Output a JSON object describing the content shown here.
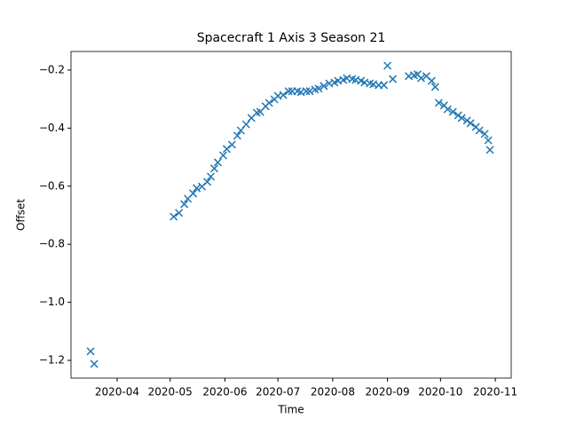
{
  "chart_data": {
    "type": "scatter",
    "title": "Spacecraft 1 Axis 3 Season 21",
    "x_label": "Time",
    "y_label": "Offset",
    "series": [
      {
        "color": "#1f77b4",
        "marker": "x",
        "x": [
          18338,
          18340,
          18385,
          18388,
          18391,
          18393,
          18396,
          18398,
          18401,
          18404,
          18406,
          18408,
          18410,
          18413,
          18415,
          18418,
          18421,
          18423,
          18426,
          18429,
          18432,
          18434,
          18437,
          18439,
          18442,
          18444,
          18447,
          18450,
          18452,
          18455,
          18457,
          18460,
          18462,
          18465,
          18467,
          18470,
          18473,
          18476,
          18478,
          18481,
          18483,
          18486,
          18488,
          18491,
          18493,
          18496,
          18498,
          18501,
          18504,
          18506,
          18509,
          18518,
          18521,
          18523,
          18525,
          18528,
          18531,
          18533,
          18535,
          18538,
          18540,
          18543,
          18546,
          18548,
          18551,
          18553,
          18556,
          18558,
          18561,
          18563,
          18564
        ],
        "values": [
          -1.169,
          -1.212,
          -0.705,
          -0.692,
          -0.662,
          -0.643,
          -0.625,
          -0.607,
          -0.601,
          -0.585,
          -0.567,
          -0.539,
          -0.518,
          -0.494,
          -0.472,
          -0.457,
          -0.426,
          -0.408,
          -0.387,
          -0.365,
          -0.347,
          -0.344,
          -0.325,
          -0.313,
          -0.301,
          -0.289,
          -0.286,
          -0.273,
          -0.273,
          -0.273,
          -0.276,
          -0.273,
          -0.273,
          -0.267,
          -0.264,
          -0.255,
          -0.246,
          -0.243,
          -0.237,
          -0.234,
          -0.228,
          -0.231,
          -0.234,
          -0.237,
          -0.243,
          -0.246,
          -0.249,
          -0.252,
          -0.252,
          -0.185,
          -0.231,
          -0.221,
          -0.218,
          -0.215,
          -0.228,
          -0.221,
          -0.237,
          -0.258,
          -0.313,
          -0.322,
          -0.335,
          -0.344,
          -0.356,
          -0.365,
          -0.374,
          -0.383,
          -0.396,
          -0.408,
          -0.42,
          -0.442,
          -0.475
        ]
      }
    ],
    "xlim": [
      18326.9,
      18576
    ],
    "xticks": [
      {
        "value": 18353,
        "label": "2020-04"
      },
      {
        "value": 18383,
        "label": "2020-05"
      },
      {
        "value": 18414,
        "label": "2020-06"
      },
      {
        "value": 18444,
        "label": "2020-07"
      },
      {
        "value": 18475,
        "label": "2020-08"
      },
      {
        "value": 18506,
        "label": "2020-09"
      },
      {
        "value": 18536,
        "label": "2020-10"
      },
      {
        "value": 18567,
        "label": "2020-11"
      }
    ],
    "ylim": [
      -1.261,
      -0.136
    ],
    "yticks": [
      {
        "value": -1.2,
        "label": "−1.2"
      },
      {
        "value": -1.0,
        "label": "−1.0"
      },
      {
        "value": -0.8,
        "label": "−0.8"
      },
      {
        "value": -0.6,
        "label": "−0.6"
      },
      {
        "value": -0.4,
        "label": "−0.4"
      },
      {
        "value": -0.2,
        "label": "−0.2"
      }
    ],
    "grid": false
  }
}
